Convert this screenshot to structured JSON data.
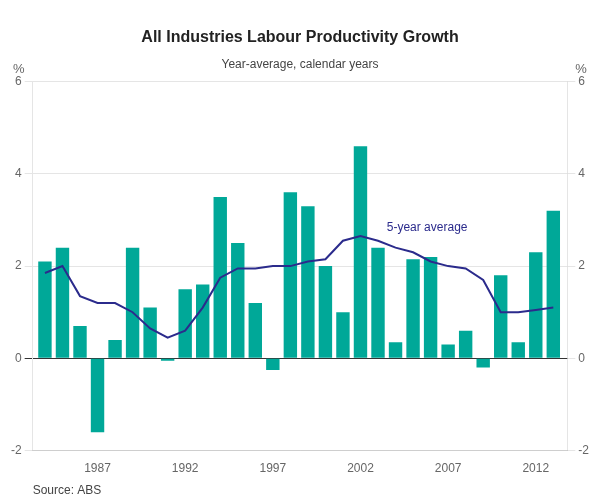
{
  "chart_data": {
    "type": "bar",
    "title": "All Industries Labour Productivity Growth",
    "subtitle": "Year-average, calendar years",
    "source": "Source: ABS",
    "x": [
      1984,
      1985,
      1986,
      1987,
      1988,
      1989,
      1990,
      1991,
      1992,
      1993,
      1994,
      1995,
      1996,
      1997,
      1998,
      1999,
      2000,
      2001,
      2002,
      2003,
      2004,
      2005,
      2006,
      2007,
      2008,
      2009,
      2010,
      2011,
      2012,
      2013
    ],
    "xlim": [
      1983.3,
      2013.8
    ],
    "xticks": [
      1987,
      1992,
      1997,
      2002,
      2007,
      2012
    ],
    "ylim": [
      -2,
      6
    ],
    "yticks": [
      -2,
      0,
      2,
      4,
      6
    ],
    "y2lim": [
      -2,
      6
    ],
    "y2ticks": [
      -2,
      0,
      2,
      4,
      6
    ],
    "ylabel": "%",
    "y2label": "%",
    "grid": true,
    "series": [
      {
        "type": "bar",
        "color": "#00A898",
        "values": [
          2.1,
          2.4,
          0.7,
          -1.6,
          0.4,
          2.4,
          1.1,
          -0.05,
          1.5,
          1.6,
          3.5,
          2.5,
          1.2,
          -0.25,
          3.6,
          3.3,
          2.0,
          1.0,
          4.6,
          2.4,
          0.35,
          2.15,
          2.2,
          0.3,
          0.6,
          -0.2,
          1.8,
          0.35,
          2.3,
          3.2
        ]
      },
      {
        "type": "line",
        "color": "#2B2B8C",
        "values": [
          1.85,
          2.0,
          1.35,
          1.2,
          1.2,
          1.0,
          0.65,
          0.45,
          0.6,
          1.1,
          1.75,
          1.95,
          1.95,
          2.0,
          2.0,
          2.1,
          2.15,
          2.55,
          2.65,
          2.55,
          2.4,
          2.3,
          2.1,
          2.0,
          1.95,
          1.7,
          1.0,
          1.0,
          1.05,
          1.1
        ]
      }
    ],
    "annotations": [
      {
        "text": "5-year average",
        "x": 2003.5,
        "y": 2.7
      }
    ]
  }
}
